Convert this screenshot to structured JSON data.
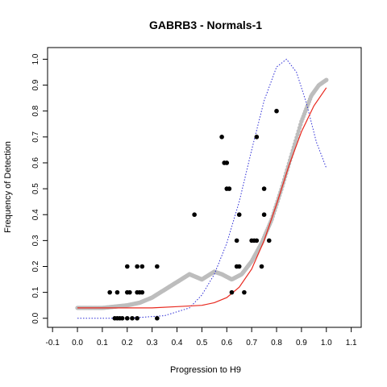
{
  "chart_data": {
    "type": "scatter",
    "title": "GABRB3 - Normals-1",
    "xlabel": "Progression to H9",
    "ylabel": "Frequency of Detection",
    "xlim": [
      -0.12,
      1.14
    ],
    "ylim": [
      -0.035,
      1.045
    ],
    "xticks": [
      "-0.1",
      "0.0",
      "0.1",
      "0.2",
      "0.3",
      "0.4",
      "0.5",
      "0.6",
      "0.7",
      "0.8",
      "0.9",
      "1.0",
      "1.1"
    ],
    "yticks": [
      "0.0",
      "0.1",
      "0.2",
      "0.3",
      "0.4",
      "0.5",
      "0.6",
      "0.7",
      "0.8",
      "0.9",
      "1.0"
    ],
    "grid": false,
    "legend": "none",
    "colors": {
      "points": "#000000",
      "smooth": "#bdbdbd",
      "fit": "#e8281e",
      "density": "#2b2bd6"
    },
    "series": [
      {
        "kind": "points",
        "x": [
          0.13,
          0.16,
          0.2,
          0.24,
          0.26,
          0.32,
          0.2,
          0.21,
          0.24,
          0.25,
          0.26,
          0.15,
          0.16,
          0.17,
          0.18,
          0.2,
          0.22,
          0.24,
          0.32,
          0.47,
          0.58,
          0.59,
          0.6,
          0.6,
          0.61,
          0.62,
          0.64,
          0.65,
          0.64,
          0.65,
          0.67,
          0.7,
          0.71,
          0.72,
          0.72,
          0.74,
          0.75,
          0.75,
          0.77,
          0.8
        ],
        "y": [
          0.1,
          0.1,
          0.2,
          0.2,
          0.2,
          0.2,
          0.1,
          0.1,
          0.1,
          0.1,
          0.1,
          0.0,
          0.0,
          0.0,
          0.0,
          0.0,
          0.0,
          0.0,
          0.0,
          0.4,
          0.7,
          0.6,
          0.6,
          0.5,
          0.5,
          0.1,
          0.3,
          0.4,
          0.2,
          0.2,
          0.1,
          0.3,
          0.3,
          0.7,
          0.3,
          0.2,
          0.4,
          0.5,
          0.3,
          0.8
        ]
      },
      {
        "kind": "smooth",
        "x": [
          0.0,
          0.05,
          0.1,
          0.15,
          0.2,
          0.25,
          0.3,
          0.35,
          0.4,
          0.45,
          0.5,
          0.55,
          0.58,
          0.62,
          0.66,
          0.7,
          0.74,
          0.78,
          0.82,
          0.86,
          0.9,
          0.94,
          0.97,
          1.0
        ],
        "y": [
          0.04,
          0.04,
          0.04,
          0.045,
          0.05,
          0.06,
          0.08,
          0.11,
          0.14,
          0.17,
          0.15,
          0.18,
          0.17,
          0.15,
          0.17,
          0.22,
          0.29,
          0.38,
          0.5,
          0.63,
          0.76,
          0.86,
          0.9,
          0.92
        ]
      },
      {
        "kind": "fit",
        "x": [
          0.0,
          0.1,
          0.2,
          0.3,
          0.4,
          0.5,
          0.55,
          0.6,
          0.65,
          0.7,
          0.75,
          0.8,
          0.85,
          0.9,
          0.95,
          1.0
        ],
        "y": [
          0.04,
          0.04,
          0.04,
          0.04,
          0.045,
          0.05,
          0.06,
          0.08,
          0.12,
          0.19,
          0.3,
          0.44,
          0.59,
          0.72,
          0.82,
          0.89
        ]
      },
      {
        "kind": "density",
        "x": [
          0.0,
          0.2,
          0.35,
          0.45,
          0.5,
          0.55,
          0.6,
          0.65,
          0.7,
          0.75,
          0.8,
          0.84,
          0.88,
          0.92,
          0.96,
          1.0
        ],
        "y": [
          0.0,
          0.0,
          0.01,
          0.04,
          0.09,
          0.17,
          0.29,
          0.45,
          0.65,
          0.84,
          0.97,
          1.0,
          0.95,
          0.83,
          0.68,
          0.58
        ]
      }
    ]
  }
}
